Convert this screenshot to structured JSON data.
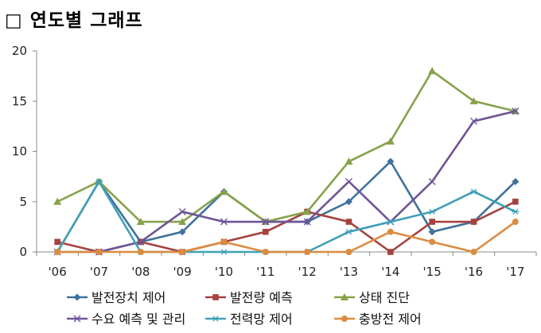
{
  "title": "□ 연도별 그래프",
  "chart_data": {
    "type": "line",
    "title": "연도별 그래프",
    "xlabel": "",
    "ylabel": "",
    "x": [
      "'06",
      "'07",
      "'08",
      "'09",
      "'10",
      "'11",
      "'12",
      "'13",
      "'14",
      "'15",
      "'16",
      "'17"
    ],
    "ylim": [
      0,
      20
    ],
    "yticks": [
      0,
      5,
      10,
      15,
      20
    ],
    "grid": false,
    "legend": "bottom",
    "series": [
      {
        "name": "발전장치 제어",
        "color": "#41719c",
        "marker": "diamond",
        "values": [
          0,
          7,
          1,
          2,
          6,
          3,
          3,
          5,
          9,
          2,
          3,
          7
        ]
      },
      {
        "name": "발전량 예측",
        "color": "#a5423f",
        "marker": "square",
        "values": [
          1,
          0,
          1,
          0,
          1,
          2,
          4,
          3,
          0,
          3,
          3,
          5
        ]
      },
      {
        "name": "상태 진단",
        "color": "#86a24b",
        "marker": "triangle",
        "values": [
          5,
          7,
          3,
          3,
          6,
          3,
          4,
          9,
          11,
          18,
          15,
          14
        ]
      },
      {
        "name": "수요 예측 및 관리",
        "color": "#6f5597",
        "marker": "x",
        "values": [
          0,
          0,
          1,
          4,
          3,
          3,
          3,
          7,
          3,
          7,
          13,
          14
        ]
      },
      {
        "name": "전력망 제어",
        "color": "#3fa0b8",
        "marker": "star",
        "values": [
          0,
          7,
          0,
          0,
          0,
          0,
          0,
          2,
          3,
          4,
          6,
          4
        ]
      },
      {
        "name": "충방전 제어",
        "color": "#dc8c40",
        "marker": "circle",
        "values": [
          0,
          0,
          0,
          0,
          1,
          0,
          0,
          0,
          2,
          1,
          0,
          3
        ]
      }
    ]
  }
}
